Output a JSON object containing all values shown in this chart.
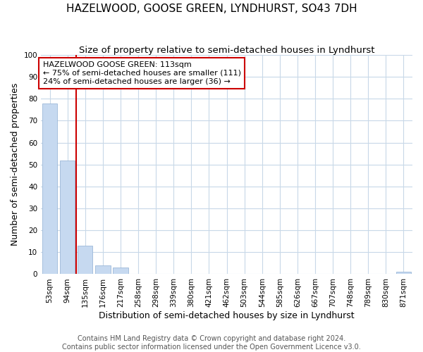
{
  "title": "HAZELWOOD, GOOSE GREEN, LYNDHURST, SO43 7DH",
  "subtitle": "Size of property relative to semi-detached houses in Lyndhurst",
  "xlabel": "Distribution of semi-detached houses by size in Lyndhurst",
  "ylabel": "Number of semi-detached properties",
  "categories": [
    "53sqm",
    "94sqm",
    "135sqm",
    "176sqm",
    "217sqm",
    "258sqm",
    "298sqm",
    "339sqm",
    "380sqm",
    "421sqm",
    "462sqm",
    "503sqm",
    "544sqm",
    "585sqm",
    "626sqm",
    "667sqm",
    "707sqm",
    "748sqm",
    "789sqm",
    "830sqm",
    "871sqm"
  ],
  "values": [
    78,
    52,
    13,
    4,
    3,
    0,
    0,
    0,
    0,
    0,
    0,
    0,
    0,
    0,
    0,
    0,
    0,
    0,
    0,
    0,
    1
  ],
  "bar_color": "#c6d9f0",
  "bar_edge_color": "#9cb8d8",
  "vline_x": 1.5,
  "vline_color": "#cc0000",
  "annotation_text": "HAZELWOOD GOOSE GREEN: 113sqm\n← 75% of semi-detached houses are smaller (111)\n24% of semi-detached houses are larger (36) →",
  "annotation_box_color": "#cc0000",
  "ylim": [
    0,
    100
  ],
  "yticks": [
    0,
    10,
    20,
    30,
    40,
    50,
    60,
    70,
    80,
    90,
    100
  ],
  "footer": "Contains HM Land Registry data © Crown copyright and database right 2024.\nContains public sector information licensed under the Open Government Licence v3.0.",
  "grid_color": "#c8d8e8",
  "background_color": "#ffffff",
  "title_fontsize": 11,
  "subtitle_fontsize": 9.5,
  "axis_label_fontsize": 9,
  "tick_fontsize": 7.5,
  "footer_fontsize": 7,
  "annotation_fontsize": 8
}
